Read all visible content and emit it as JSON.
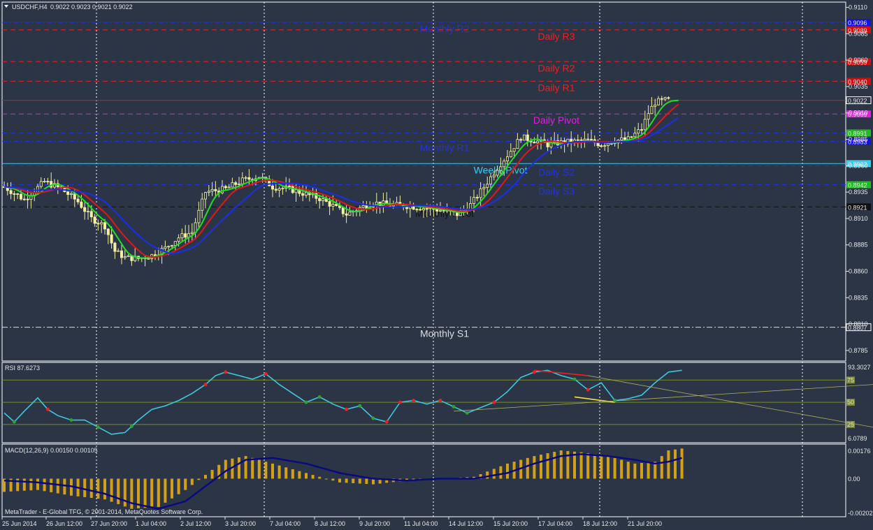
{
  "header": {
    "symbol": "USDCHF,H4",
    "ohlc": "0.9022 0.9023 0.9021 0.9022"
  },
  "footer": "MetaTrader - E-Global TFG, © 2001-2014, MetaQuotes Software Corp.",
  "colors": {
    "background": "#2c3545",
    "axis": "#e6e6e6",
    "candle_up": "#f5f0a0",
    "moving_average_fast": "#22dd22",
    "moving_average_mid": "#e01818",
    "moving_average_slow": "#1830e8",
    "rsi": "#3cc8e0",
    "macd_histogram": "#d4a017",
    "macd_signal": "#0a0a80",
    "rsi_levels": "#7a8a30"
  },
  "main": {
    "price_ticks": [
      "0.9110",
      "0.9085",
      "0.9060",
      "0.9035",
      "0.9010",
      "0.8985",
      "0.8960",
      "0.8935",
      "0.8910",
      "0.8885",
      "0.8860",
      "0.8835",
      "0.8810",
      "0.8785"
    ],
    "level_labels": [
      {
        "text": "Monthly R2",
        "price": 0.90957,
        "color": "#2233dd",
        "tag": "0.9096",
        "tag_color": "#1414d8",
        "line": "dash-dot"
      },
      {
        "text": "Daily R3",
        "price": 0.90887,
        "color": "#ee2020",
        "tag": "0.9089",
        "tag_color": "#cc1010",
        "line": "dash"
      },
      {
        "text": "Daily R2",
        "price": 0.90586,
        "color": "#ee2020",
        "tag": "0.9059",
        "tag_color": "#cc1010",
        "line": "dash"
      },
      {
        "text": "Daily R1",
        "price": 0.904,
        "color": "#ee2020",
        "tag": "0.9040",
        "tag_color": "#cc1010",
        "line": "dash"
      },
      {
        "text": "",
        "price": 0.9022,
        "color": "#cc2020",
        "tag": "0.9022",
        "tag_color": "#ffffff",
        "line": "solid"
      },
      {
        "text": "Daily Pivot",
        "price": 0.9009,
        "color": "#e020e0",
        "tag": "0.9009",
        "tag_color": "#e020e0",
        "line": "dash"
      },
      {
        "text": "Daily S1",
        "price": 0.8991,
        "color": "#2233dd",
        "tag": "0.8991",
        "tag_color": "#22bb22",
        "line": "dash"
      },
      {
        "text": "Monthly R1",
        "price": 0.8983,
        "color": "#2233dd",
        "tag": "0.8983",
        "tag_color": "#1414d8",
        "line": "dash-dot"
      },
      {
        "text": "WeeklyPivot",
        "price": 0.8962,
        "color": "#30d0f0",
        "tag": "0.8962",
        "tag_color": "#30d0f0",
        "line": "solid"
      },
      {
        "text": "Daily S2",
        "price": 0.896,
        "color": "#2233dd",
        "tag": "",
        "tag_color": "#22bb22",
        "line": "dash"
      },
      {
        "text": "Daily S3",
        "price": 0.8942,
        "color": "#2233dd",
        "tag": "0.8942",
        "tag_color": "#22bb22",
        "line": "dash"
      },
      {
        "text": "Monthly Pivot",
        "price": 0.8921,
        "color": "#111111",
        "tag": "0.8921",
        "tag_color": "#111111",
        "line": "dash"
      },
      {
        "text": "Monthly S1",
        "price": 0.8807,
        "color": "#dddddd",
        "tag": "0.8807",
        "tag_color": "#ffffff",
        "line": "dash-dot"
      }
    ]
  },
  "rsi": {
    "label": "RSI 87.6273",
    "top_tick": "93.3027",
    "bottom_tick": "6.0789",
    "level_tags": [
      "75",
      "50",
      "25"
    ]
  },
  "macd": {
    "label": "MACD(12,26,9) 0.00150 0.00105",
    "ticks": [
      "0.00176",
      "0.00",
      "-0.00202"
    ]
  },
  "time_labels": [
    "25 Jun 2014",
    "26 Jun 12:00",
    "27 Jun 20:00",
    "1 Jul 04:00",
    "2 Jul 12:00",
    "3 Jul 20:00",
    "7 Jul 04:00",
    "8 Jul 12:00",
    "9 Jul 20:00",
    "11 Jul 04:00",
    "14 Jul 12:00",
    "15 Jul 20:00",
    "17 Jul 04:00",
    "18 Jul 12:00",
    "21 Jul 20:00"
  ],
  "chart_data": {
    "type": "candlestick",
    "symbol": "USDCHF",
    "timeframe": "H4",
    "ylim": [
      0.8775,
      0.9115
    ],
    "x_categories": [
      "25 Jun 2014",
      "26 Jun 12:00",
      "27 Jun 20:00",
      "1 Jul 04:00",
      "2 Jul 12:00",
      "3 Jul 20:00",
      "7 Jul 04:00",
      "8 Jul 12:00",
      "9 Jul 20:00",
      "11 Jul 04:00",
      "14 Jul 12:00",
      "15 Jul 20:00",
      "17 Jul 04:00",
      "18 Jul 12:00",
      "21 Jul 20:00"
    ],
    "close_anchors": [
      [
        0,
        0.894
      ],
      [
        6,
        0.8928
      ],
      [
        12,
        0.8945
      ],
      [
        17,
        0.8938
      ],
      [
        22,
        0.8926
      ],
      [
        26,
        0.891
      ],
      [
        30,
        0.8903
      ],
      [
        33,
        0.8879
      ],
      [
        36,
        0.8873
      ],
      [
        40,
        0.8872
      ],
      [
        44,
        0.8875
      ],
      [
        48,
        0.8882
      ],
      [
        52,
        0.8892
      ],
      [
        56,
        0.8897
      ],
      [
        60,
        0.8935
      ],
      [
        66,
        0.8938
      ],
      [
        71,
        0.8946
      ],
      [
        76,
        0.895
      ],
      [
        80,
        0.894
      ],
      [
        85,
        0.8938
      ],
      [
        90,
        0.8933
      ],
      [
        94,
        0.8929
      ],
      [
        98,
        0.8922
      ],
      [
        102,
        0.8914
      ],
      [
        106,
        0.892
      ],
      [
        110,
        0.8925
      ],
      [
        115,
        0.8923
      ],
      [
        120,
        0.8922
      ],
      [
        125,
        0.892
      ],
      [
        130,
        0.8918
      ],
      [
        135,
        0.8914
      ],
      [
        139,
        0.8923
      ],
      [
        143,
        0.894
      ],
      [
        147,
        0.8958
      ],
      [
        150,
        0.897
      ],
      [
        154,
        0.8987
      ],
      [
        158,
        0.8984
      ],
      [
        162,
        0.898
      ],
      [
        166,
        0.8982
      ],
      [
        170,
        0.8983
      ],
      [
        174,
        0.8984
      ],
      [
        178,
        0.898
      ],
      [
        182,
        0.8984
      ],
      [
        186,
        0.8985
      ],
      [
        190,
        0.8995
      ],
      [
        192,
        0.901
      ],
      [
        194,
        0.902
      ],
      [
        197,
        0.9022
      ]
    ],
    "overlays": [
      "moving_average_fast",
      "moving_average_mid",
      "moving_average_slow"
    ],
    "rsi": {
      "current": 87.6273,
      "levels": [
        75,
        50,
        25
      ],
      "range": [
        6.0789,
        93.3027
      ],
      "anchors": [
        [
          0,
          38
        ],
        [
          3,
          28
        ],
        [
          6,
          40
        ],
        [
          10,
          55
        ],
        [
          13,
          42
        ],
        [
          16,
          35
        ],
        [
          20,
          30
        ],
        [
          24,
          30
        ],
        [
          28,
          22
        ],
        [
          32,
          14
        ],
        [
          36,
          16
        ],
        [
          40,
          30
        ],
        [
          44,
          42
        ],
        [
          48,
          46
        ],
        [
          52,
          52
        ],
        [
          56,
          60
        ],
        [
          60,
          70
        ],
        [
          63,
          80
        ],
        [
          66,
          84
        ],
        [
          70,
          80
        ],
        [
          74,
          76
        ],
        [
          78,
          82
        ],
        [
          82,
          70
        ],
        [
          86,
          60
        ],
        [
          90,
          50
        ],
        [
          94,
          56
        ],
        [
          98,
          48
        ],
        [
          102,
          42
        ],
        [
          106,
          46
        ],
        [
          110,
          32
        ],
        [
          114,
          28
        ],
        [
          118,
          50
        ],
        [
          122,
          52
        ],
        [
          126,
          48
        ],
        [
          130,
          52
        ],
        [
          134,
          45
        ],
        [
          138,
          38
        ],
        [
          142,
          44
        ],
        [
          146,
          50
        ],
        [
          150,
          62
        ],
        [
          154,
          78
        ],
        [
          158,
          84
        ],
        [
          162,
          86
        ],
        [
          166,
          80
        ],
        [
          170,
          76
        ],
        [
          174,
          64
        ],
        [
          178,
          72
        ],
        [
          182,
          52
        ],
        [
          186,
          54
        ],
        [
          190,
          58
        ],
        [
          194,
          72
        ],
        [
          198,
          84
        ],
        [
          202,
          86
        ]
      ]
    },
    "macd": {
      "value": 0.0015,
      "signal": 0.00105,
      "range": [
        -0.00202,
        0.00176
      ],
      "histogram_anchors": [
        [
          0,
          -0.0007
        ],
        [
          10,
          -0.0006
        ],
        [
          20,
          -0.0009
        ],
        [
          30,
          -0.0011
        ],
        [
          38,
          -0.0016
        ],
        [
          46,
          -0.0015
        ],
        [
          54,
          -0.0006
        ],
        [
          60,
          0.0002
        ],
        [
          66,
          0.001
        ],
        [
          72,
          0.0012
        ],
        [
          80,
          0.0008
        ],
        [
          90,
          0.0003
        ],
        [
          100,
          -0.0002
        ],
        [
          110,
          -0.0003
        ],
        [
          120,
          -0.0001
        ],
        [
          130,
          0.0
        ],
        [
          140,
          0.0001
        ],
        [
          150,
          0.0008
        ],
        [
          158,
          0.0012
        ],
        [
          166,
          0.0015
        ],
        [
          172,
          0.0014
        ],
        [
          180,
          0.0012
        ],
        [
          188,
          0.0008
        ],
        [
          194,
          0.0009
        ],
        [
          198,
          0.0015
        ],
        [
          202,
          0.0016
        ]
      ],
      "signal_anchors": [
        [
          0,
          -0.0001
        ],
        [
          10,
          -0.0002
        ],
        [
          20,
          -0.0004
        ],
        [
          30,
          -0.0008
        ],
        [
          38,
          -0.0013
        ],
        [
          46,
          -0.0016
        ],
        [
          54,
          -0.0012
        ],
        [
          60,
          -0.0004
        ],
        [
          66,
          0.0004
        ],
        [
          72,
          0.001
        ],
        [
          80,
          0.0011
        ],
        [
          90,
          0.0008
        ],
        [
          100,
          0.0003
        ],
        [
          110,
          0.0
        ],
        [
          120,
          -0.0001
        ],
        [
          130,
          0.0
        ],
        [
          140,
          0.0
        ],
        [
          150,
          0.0003
        ],
        [
          158,
          0.0008
        ],
        [
          166,
          0.0012
        ],
        [
          172,
          0.0013
        ],
        [
          180,
          0.0012
        ],
        [
          188,
          0.001
        ],
        [
          194,
          0.0008
        ],
        [
          198,
          0.0009
        ],
        [
          202,
          0.0011
        ]
      ]
    }
  }
}
